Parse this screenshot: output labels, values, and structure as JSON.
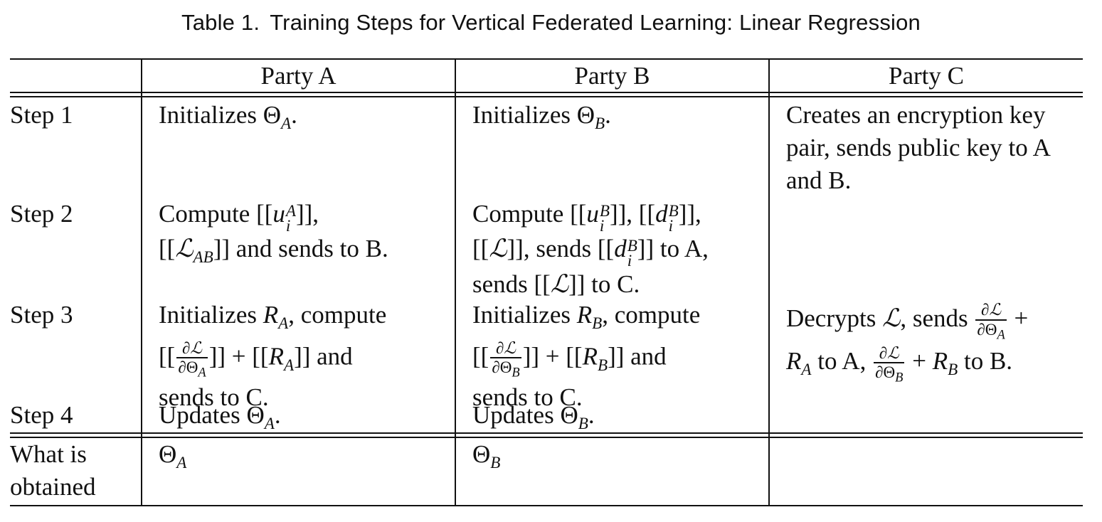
{
  "caption": {
    "number": "Table 1.",
    "title": "Training Steps for Vertical Federated Learning: Linear Regression"
  },
  "headers": [
    "Party A",
    "Party B",
    "Party C"
  ],
  "rows": [
    {
      "label": [
        "Step 1"
      ],
      "a": [
        "Initializes Θ_A."
      ],
      "b": [
        "Initializes Θ_B."
      ],
      "c": [
        "Creates an encryption key",
        "pair, sends public key to A",
        "and B."
      ]
    },
    {
      "label": [
        "Step 2"
      ],
      "a": [
        "Compute [[u_i^A]],",
        "[[ℒ_AB]] and sends to B."
      ],
      "b": [
        "Compute [[u_i^B]], [[d_i^B]],",
        "[[ℒ]], sends [[d_i^B]] to A,",
        "sends [[ℒ]] to C."
      ],
      "c": []
    },
    {
      "label": [
        "Step 3"
      ],
      "a": [
        "Initializes R_A, compute",
        "[[∂ℒ/∂Θ_A]] + [[R_A]] and",
        "sends to C."
      ],
      "b": [
        "Initializes R_B, compute",
        "[[∂ℒ/∂Θ_B]] + [[R_B]] and",
        "sends to C."
      ],
      "c": [
        "Decrypts ℒ, sends ∂ℒ/∂Θ_A +",
        "R_A to A, ∂ℒ/∂Θ_B + R_B to B."
      ]
    },
    {
      "label": [
        "Step 4"
      ],
      "a": [
        "Updates Θ_A."
      ],
      "b": [
        "Updates Θ_B."
      ],
      "c": []
    },
    {
      "label": [
        "What is",
        "obtained"
      ],
      "a": [
        "Θ_A"
      ],
      "b": [
        "Θ_B"
      ],
      "c": []
    }
  ]
}
